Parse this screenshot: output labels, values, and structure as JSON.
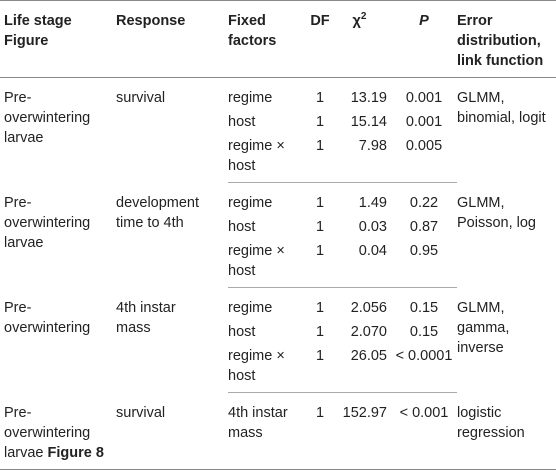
{
  "headers": {
    "stage": [
      "Life stage",
      "Figure"
    ],
    "response": "Response",
    "fixed": [
      "Fixed",
      "factors"
    ],
    "df": "DF",
    "chi": "χ",
    "chi_sup": "2",
    "p": "P",
    "error": [
      "Error",
      "distribution,",
      "link function"
    ]
  },
  "groups": [
    {
      "stage": [
        "Pre-",
        "overwintering",
        "larvae"
      ],
      "stage_figure": "",
      "response": [
        "survival"
      ],
      "error": [
        "GLMM,",
        "binomial, logit"
      ],
      "rows": [
        {
          "factor": [
            "regime"
          ],
          "df": "1",
          "chi": "13.19",
          "p": "0.001"
        },
        {
          "factor": [
            "host"
          ],
          "df": "1",
          "chi": "15.14",
          "p": "0.001"
        },
        {
          "factor": [
            "regime ×",
            "host"
          ],
          "df": "1",
          "chi": "7.98",
          "p": "0.005"
        }
      ]
    },
    {
      "stage": [
        "Pre-",
        "overwintering",
        "larvae"
      ],
      "stage_figure": "",
      "response": [
        "development",
        "time to 4th"
      ],
      "error": [
        "GLMM,",
        "Poisson, log"
      ],
      "rows": [
        {
          "factor": [
            "regime"
          ],
          "df": "1",
          "chi": "1.49",
          "p": "0.22"
        },
        {
          "factor": [
            "host"
          ],
          "df": "1",
          "chi": "0.03",
          "p": "0.87"
        },
        {
          "factor": [
            "regime ×",
            "host"
          ],
          "df": "1",
          "chi": "0.04",
          "p": "0.95"
        }
      ]
    },
    {
      "stage": [
        "Pre-",
        "overwintering"
      ],
      "stage_figure": "",
      "response": [
        "4th instar",
        "mass"
      ],
      "error": [
        "GLMM,",
        "gamma,",
        "inverse"
      ],
      "rows": [
        {
          "factor": [
            "regime"
          ],
          "df": "1",
          "chi": "2.056",
          "p": "0.15"
        },
        {
          "factor": [
            "host"
          ],
          "df": "1",
          "chi": "2.070",
          "p": "0.15"
        },
        {
          "factor": [
            "regime ×",
            "host"
          ],
          "df": "1",
          "chi": "26.05",
          "p": "< 0.0001"
        }
      ]
    },
    {
      "stage": [
        "Pre-",
        "overwintering",
        "larvae"
      ],
      "stage_figure": "Figure 8",
      "response": [
        "survival"
      ],
      "error": [
        "logistic",
        "regression"
      ],
      "rows": [
        {
          "factor": [
            "4th instar",
            "mass"
          ],
          "df": "1",
          "chi": "152.97",
          "p": "< 0.001"
        }
      ]
    }
  ]
}
